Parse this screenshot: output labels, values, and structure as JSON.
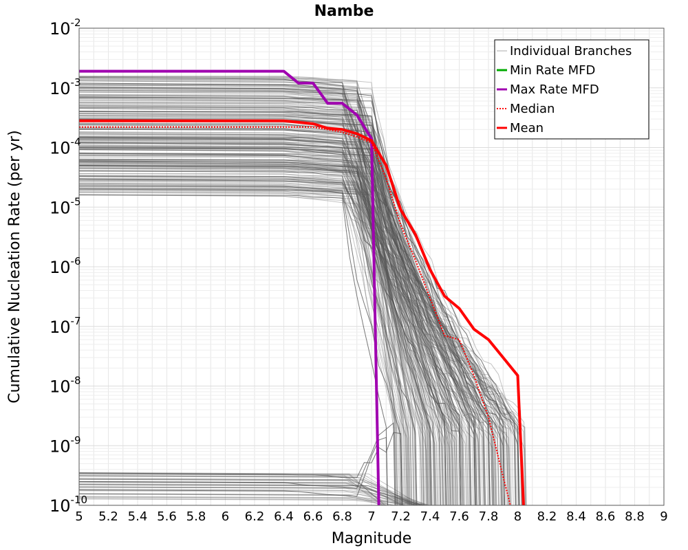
{
  "chart_data": {
    "type": "line",
    "title": "Nambe",
    "xlabel": "Magnitude",
    "ylabel": "Cumulative Nucleation Rate (per yr)",
    "xlim": [
      5,
      9
    ],
    "ylim": [
      1e-10,
      0.01
    ],
    "yscale": "log",
    "grid": true,
    "legend_position": "top-right",
    "x_ticks": [
      "5",
      "5.2",
      "5.4",
      "5.6",
      "5.8",
      "6",
      "6.2",
      "6.4",
      "6.6",
      "6.8",
      "7",
      "7.2",
      "7.4",
      "7.6",
      "7.8",
      "8",
      "8.2",
      "8.4",
      "8.6",
      "8.8",
      "9"
    ],
    "y_tick_exponents": [
      "-10",
      "-9",
      "-8",
      "-7",
      "-6",
      "-5",
      "-4",
      "-3",
      "-2"
    ],
    "y_tick_base": "10",
    "series": [
      {
        "name": "Individual Branches",
        "color": "#555555",
        "note_style": "thin gray lines (many branches)",
        "representative_curves": [
          {
            "plateau": 0.0015,
            "drop_start": 6.8,
            "end_mag": 7.9
          },
          {
            "plateau": 0.0012,
            "drop_start": 6.9,
            "end_mag": 8.0
          },
          {
            "plateau": 0.0009,
            "drop_start": 7.0,
            "end_mag": 7.7
          },
          {
            "plateau": 0.0007,
            "drop_start": 7.0,
            "end_mag": 7.8
          },
          {
            "plateau": 0.0005,
            "drop_start": 6.95,
            "end_mag": 7.6
          },
          {
            "plateau": 0.0004,
            "drop_start": 7.0,
            "end_mag": 7.5
          },
          {
            "plateau": 0.0003,
            "drop_start": 7.0,
            "end_mag": 7.9
          },
          {
            "plateau": 0.00025,
            "drop_start": 7.0,
            "end_mag": 7.7
          },
          {
            "plateau": 0.0002,
            "drop_start": 7.0,
            "end_mag": 8.0
          },
          {
            "plateau": 0.00015,
            "drop_start": 7.0,
            "end_mag": 7.6
          },
          {
            "plateau": 0.00012,
            "drop_start": 7.0,
            "end_mag": 7.8
          },
          {
            "plateau": 0.0001,
            "drop_start": 7.0,
            "end_mag": 7.4
          },
          {
            "plateau": 8e-05,
            "drop_start": 7.0,
            "end_mag": 7.9
          },
          {
            "plateau": 6e-05,
            "drop_start": 6.9,
            "end_mag": 7.5
          },
          {
            "plateau": 5e-05,
            "drop_start": 6.9,
            "end_mag": 7.7
          },
          {
            "plateau": 4e-05,
            "drop_start": 6.85,
            "end_mag": 7.3
          },
          {
            "plateau": 3e-05,
            "drop_start": 6.85,
            "end_mag": 7.6
          },
          {
            "plateau": 2e-05,
            "drop_start": 6.8,
            "end_mag": 7.2
          },
          {
            "plateau": 1.6e-05,
            "drop_start": 6.8,
            "end_mag": 7.1
          },
          {
            "plateau": 3.5e-10,
            "drop_start": 6.9,
            "end_mag": 7.2
          },
          {
            "plateau": 2.5e-10,
            "drop_start": 6.9,
            "end_mag": 7.15
          },
          {
            "plateau": 1.8e-10,
            "drop_start": 6.9,
            "end_mag": 7.1
          }
        ]
      },
      {
        "name": "Min Rate MFD",
        "color": "#00aa00",
        "x": [],
        "y": []
      },
      {
        "name": "Max Rate MFD",
        "color": "#a000b0",
        "x": [
          5.0,
          6.4,
          6.5,
          6.55,
          6.6,
          6.7,
          6.8,
          6.9,
          7.0,
          7.05
        ],
        "y": [
          0.0019,
          0.0019,
          0.0012,
          0.0012,
          0.0012,
          0.00055,
          0.00055,
          0.00035,
          0.00014,
          1e-10
        ]
      },
      {
        "name": "Median",
        "color": "#ff0000",
        "dash": "dotted",
        "x": [
          5.0,
          6.4,
          6.6,
          6.7,
          6.8,
          6.9,
          7.0,
          7.1,
          7.2,
          7.3,
          7.4,
          7.5,
          7.6,
          7.7,
          7.8,
          7.9,
          7.95
        ],
        "y": [
          0.00022,
          0.00022,
          0.00022,
          0.0002,
          0.00018,
          0.00015,
          0.00012,
          3e-05,
          5e-06,
          1.3e-06,
          3e-07,
          7e-08,
          6e-08,
          1.5e-08,
          3e-09,
          3e-10,
          1e-10
        ]
      },
      {
        "name": "Mean",
        "color": "#ff0000",
        "x": [
          5.0,
          6.4,
          6.6,
          6.7,
          6.8,
          6.9,
          7.0,
          7.1,
          7.2,
          7.3,
          7.4,
          7.5,
          7.6,
          7.7,
          7.8,
          7.9,
          8.0,
          8.04
        ],
        "y": [
          0.00028,
          0.00028,
          0.00025,
          0.00021,
          0.0002,
          0.00017,
          0.00013,
          5e-05,
          9e-06,
          3.5e-06,
          9e-07,
          3.2e-07,
          2e-07,
          9e-08,
          6e-08,
          3e-08,
          1.5e-08,
          1e-10
        ]
      }
    ]
  }
}
